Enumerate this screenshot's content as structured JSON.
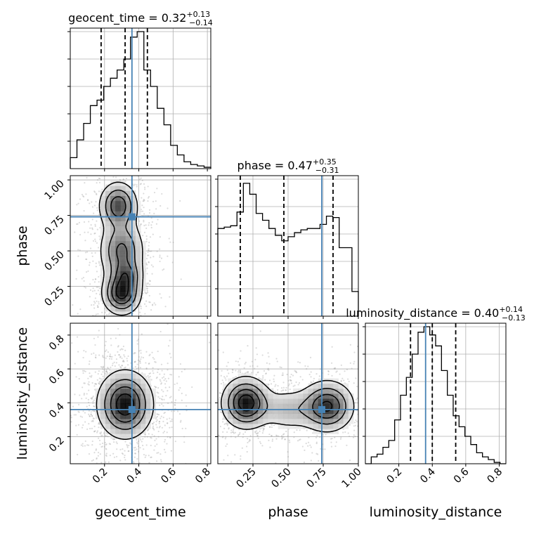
{
  "chart_data": {
    "type": "corner",
    "parameters": [
      "geocent_time",
      "phase",
      "luminosity_distance"
    ],
    "truth": {
      "geocent_time": 0.36,
      "phase": 0.74,
      "luminosity_distance": 0.36
    },
    "colors": {
      "truth": "#4682b4",
      "ink": "#000000",
      "grid": "#b0b0b0",
      "points": "#9a9a9a"
    },
    "grid": true,
    "diagonal": [
      {
        "param": "geocent_time",
        "title": {
          "label": "geocent_time = 0.32",
          "sup": "+0.13",
          "sub": "−0.14"
        },
        "range": [
          0.0,
          0.82
        ],
        "quantiles": [
          0.18,
          0.32,
          0.45
        ],
        "hist_y": [
          0.08,
          0.21,
          0.33,
          0.46,
          0.5,
          0.6,
          0.66,
          0.72,
          0.8,
          0.96,
          1.0,
          0.72,
          0.6,
          0.44,
          0.32,
          0.17,
          0.1,
          0.05,
          0.03,
          0.02,
          0.01
        ]
      },
      {
        "param": "phase",
        "title": {
          "label": "phase = 0.47",
          "sup": "+0.35",
          "sub": "−0.31"
        },
        "range": [
          0.0,
          1.0
        ],
        "quantiles": [
          0.16,
          0.47,
          0.82
        ],
        "hist_y": [
          0.64,
          0.65,
          0.66,
          0.76,
          0.97,
          0.89,
          0.75,
          0.7,
          0.64,
          0.59,
          0.55,
          0.58,
          0.61,
          0.63,
          0.64,
          0.64,
          0.67,
          0.73,
          0.72,
          0.5,
          0.5,
          0.18
        ]
      },
      {
        "param": "luminosity_distance",
        "title": {
          "label": "luminosity_distance = 0.40",
          "sup": "+0.14",
          "sub": "−0.13"
        },
        "range": [
          0.0,
          0.84
        ],
        "quantiles": [
          0.27,
          0.4,
          0.54
        ],
        "hist_y": [
          0.0,
          0.05,
          0.07,
          0.12,
          0.17,
          0.32,
          0.5,
          0.63,
          0.8,
          0.96,
          1.0,
          0.94,
          0.86,
          0.68,
          0.5,
          0.35,
          0.27,
          0.2,
          0.14,
          0.08,
          0.05,
          0.03,
          0.01,
          0.0
        ]
      }
    ],
    "pairs": [
      {
        "x": "geocent_time",
        "y": "phase",
        "xlim": [
          0.0,
          0.82
        ],
        "ylim": [
          0.04,
          1.03
        ],
        "blobs": [
          {
            "x": 0.3,
            "y": 0.2,
            "sx": 0.06,
            "sy": 0.08,
            "w": 0.33
          },
          {
            "x": 0.28,
            "y": 0.82,
            "sx": 0.06,
            "sy": 0.09,
            "w": 0.28
          },
          {
            "x": 0.3,
            "y": 0.5,
            "sx": 0.07,
            "sy": 0.12,
            "w": 0.24
          },
          {
            "x": 0.33,
            "y": 0.33,
            "sx": 0.05,
            "sy": 0.06,
            "w": 0.15
          }
        ]
      },
      {
        "x": "geocent_time",
        "y": "luminosity_distance",
        "xlim": [
          0.0,
          0.82
        ],
        "ylim": [
          0.04,
          0.87
        ],
        "blobs": [
          {
            "x": 0.32,
            "y": 0.39,
            "sx": 0.085,
            "sy": 0.105,
            "w": 1.0
          }
        ]
      },
      {
        "x": "phase",
        "y": "luminosity_distance",
        "xlim": [
          0.0,
          1.0
        ],
        "ylim": [
          0.04,
          0.87
        ],
        "blobs": [
          {
            "x": 0.2,
            "y": 0.4,
            "sx": 0.09,
            "sy": 0.08,
            "w": 0.45
          },
          {
            "x": 0.78,
            "y": 0.38,
            "sx": 0.1,
            "sy": 0.08,
            "w": 0.4
          },
          {
            "x": 0.5,
            "y": 0.36,
            "sx": 0.12,
            "sy": 0.07,
            "w": 0.15
          }
        ]
      }
    ],
    "ticks": {
      "geocent_time": {
        "values": [
          0.2,
          0.4,
          0.6,
          0.8
        ],
        "labels": [
          "0.2",
          "0.4",
          "0.6",
          "0.8"
        ]
      },
      "phase": {
        "values": [
          0.25,
          0.5,
          0.75,
          1.0
        ],
        "labels": [
          "0.25",
          "0.50",
          "0.75",
          "1.00"
        ]
      },
      "luminosity_distance": {
        "values": [
          0.2,
          0.4,
          0.6,
          0.8
        ],
        "labels": [
          "0.2",
          "0.4",
          "0.6",
          "0.8"
        ]
      }
    },
    "axis_labels": {
      "geocent_time": "geocent_time",
      "phase": "phase",
      "luminosity_distance": "luminosity_distance"
    }
  }
}
